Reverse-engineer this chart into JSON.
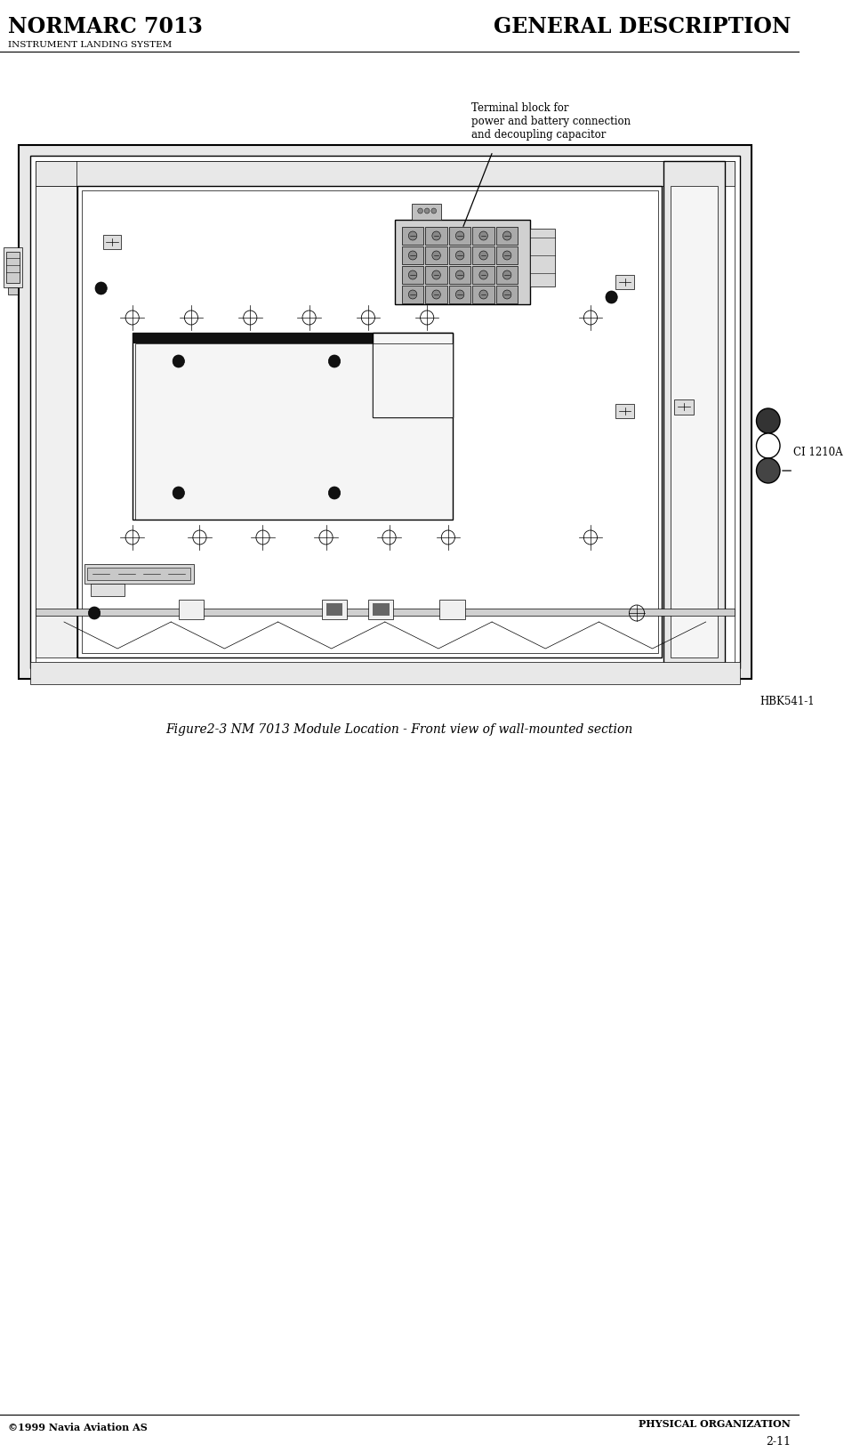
{
  "page_width": 9.49,
  "page_height": 16.32,
  "bg_color": "#ffffff",
  "header_left_top": "NORMARC 7013",
  "header_left_bottom": "INSTRUMENT LANDING SYSTEM",
  "header_right_top": "GENERAL DESCRIPTION",
  "footer_left": "©1999 Navia Aviation AS",
  "footer_right_top": "PHYSICAL ORGANIZATION",
  "footer_right_bottom": "2-11",
  "figure_caption": "Figure2-3 NM 7013 Module Location - Front view of wall-mounted section",
  "annotation_terminal": "Terminal block for\npower and battery connection\nand decoupling capacitor",
  "annotation_ci": "CI 1210A",
  "annotation_hbk": "HBK541-1",
  "line_color": "#000000"
}
